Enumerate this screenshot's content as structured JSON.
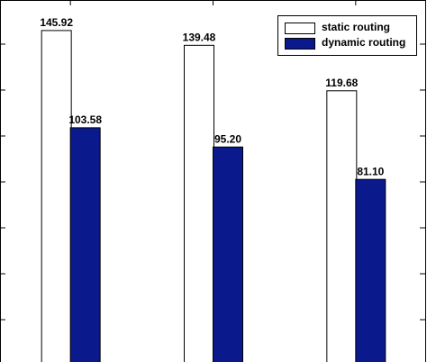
{
  "chart_data": {
    "type": "bar",
    "categories": [
      null,
      null,
      null
    ],
    "series": [
      {
        "name": "static routing",
        "color": "#ffffff",
        "values": [
          145.92,
          139.48,
          119.68
        ],
        "value_labels": [
          "145.92",
          "139.48",
          "119.68"
        ]
      },
      {
        "name": "dynamic routing",
        "color": "#0a1a8c",
        "values": [
          103.58,
          95.2,
          81.1
        ],
        "value_labels": [
          "103.58",
          "95.20",
          "81.10"
        ]
      }
    ],
    "ylim": [
      0,
      160
    ],
    "yticks": [
      20,
      40,
      60,
      80,
      100,
      120,
      140
    ],
    "legend": "upper right"
  }
}
